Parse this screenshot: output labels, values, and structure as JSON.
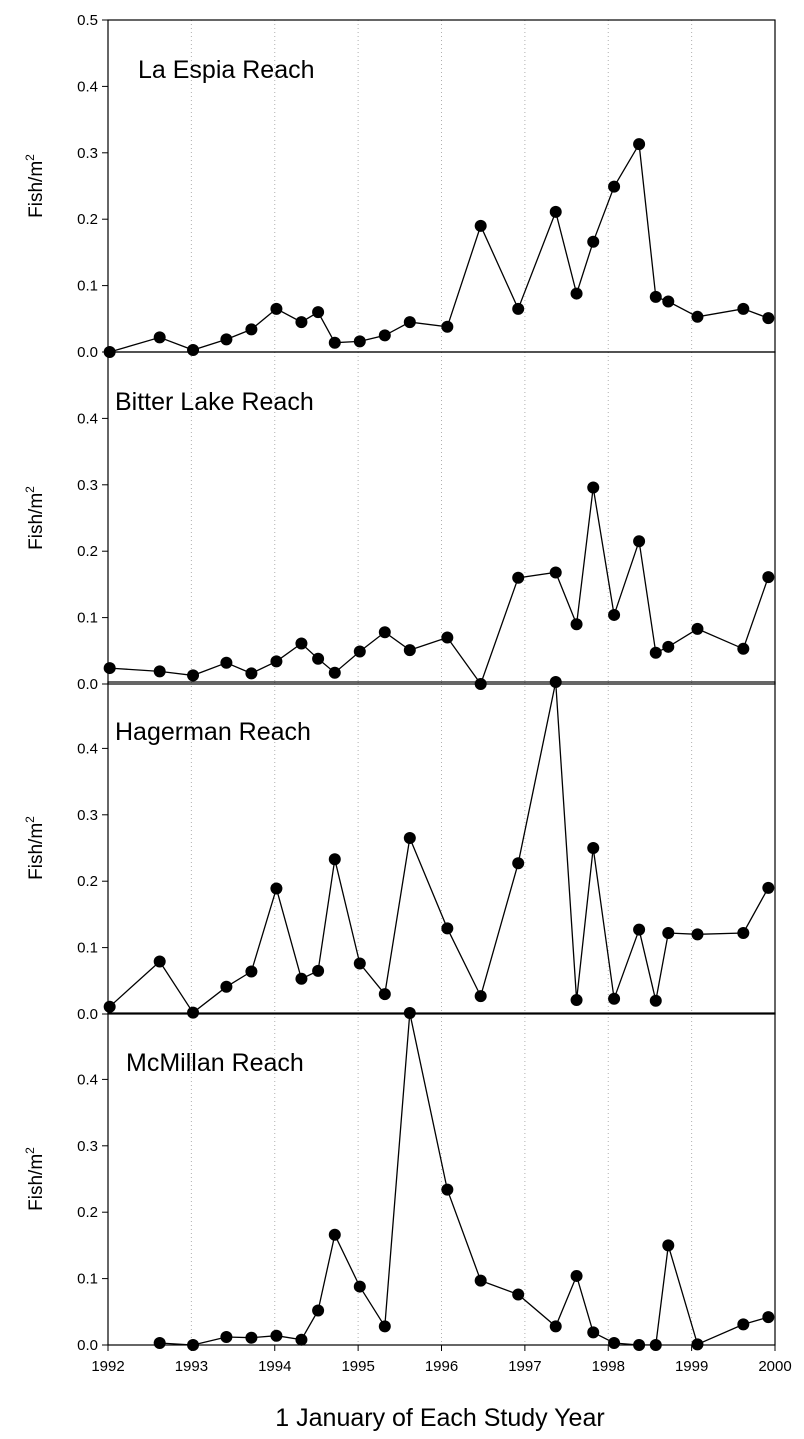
{
  "chart_data": {
    "type": "line",
    "xlabel": "1 January of Each Study Year",
    "x_ticks": [
      "1992",
      "1993",
      "1994",
      "1995",
      "1996",
      "1997",
      "1998",
      "1999",
      "2000"
    ],
    "xlim": [
      1992,
      2000
    ],
    "ylim": [
      0,
      0.5
    ],
    "y_ticks_top_panel": [
      "0.0",
      "0.1",
      "0.2",
      "0.3",
      "0.4",
      "0.5"
    ],
    "y_ticks_other_panels": [
      "0.0",
      "0.1",
      "0.2",
      "0.3",
      "0.4"
    ],
    "vertical_grid": "dotted at each year",
    "panels": [
      {
        "title": "La Espia Reach",
        "ylabel": "Fish/m²",
        "x": [
          1992.02,
          1992.62,
          1993.02,
          1993.42,
          1993.72,
          1994.02,
          1994.32,
          1994.52,
          1994.72,
          1995.02,
          1995.32,
          1995.62,
          1996.07,
          1996.47,
          1996.92,
          1997.37,
          1997.62,
          1997.82,
          1998.07,
          1998.37,
          1998.57,
          1998.72,
          1999.07,
          1999.62,
          1999.92
        ],
        "y": [
          0.0,
          0.022,
          0.003,
          0.019,
          0.034,
          0.065,
          0.045,
          0.06,
          0.014,
          0.016,
          0.025,
          0.045,
          0.038,
          0.19,
          0.065,
          0.211,
          0.088,
          0.166,
          0.249,
          0.313,
          0.083,
          0.076,
          0.053,
          0.065,
          0.051
        ]
      },
      {
        "title": "Bitter Lake Reach",
        "ylabel": "Fish/m²",
        "x": [
          1992.02,
          1992.62,
          1993.02,
          1993.42,
          1993.72,
          1994.02,
          1994.32,
          1994.52,
          1994.72,
          1995.02,
          1995.32,
          1995.62,
          1996.07,
          1996.47,
          1996.92,
          1997.37,
          1997.62,
          1997.82,
          1998.07,
          1998.37,
          1998.57,
          1998.72,
          1999.07,
          1999.62,
          1999.92
        ],
        "y": [
          0.024,
          0.019,
          0.013,
          0.032,
          0.016,
          0.034,
          0.061,
          0.038,
          0.017,
          0.049,
          0.078,
          0.051,
          0.07,
          0.0,
          0.16,
          0.168,
          0.09,
          0.296,
          0.104,
          0.215,
          0.047,
          0.056,
          0.083,
          0.053,
          0.161
        ]
      },
      {
        "title": "Hagerman Reach",
        "ylabel": "Fish/m²",
        "x": [
          1992.02,
          1992.62,
          1993.02,
          1993.42,
          1993.72,
          1994.02,
          1994.32,
          1994.52,
          1994.72,
          1995.02,
          1995.32,
          1995.62,
          1996.07,
          1996.47,
          1996.92,
          1997.37,
          1997.62,
          1997.82,
          1998.07,
          1998.37,
          1998.57,
          1998.72,
          1999.07,
          1999.62,
          1999.92
        ],
        "y": [
          0.011,
          0.079,
          0.002,
          0.041,
          0.064,
          0.189,
          0.053,
          0.065,
          0.233,
          0.076,
          0.03,
          0.265,
          0.129,
          0.027,
          0.227,
          0.5,
          0.021,
          0.25,
          0.023,
          0.127,
          0.02,
          0.122,
          0.12,
          0.122,
          0.19
        ]
      },
      {
        "title": "McMillan Reach",
        "ylabel": "Fish/m²",
        "x": [
          1992.62,
          1993.02,
          1993.42,
          1993.72,
          1994.02,
          1994.32,
          1994.52,
          1994.72,
          1995.02,
          1995.32,
          1995.62,
          1996.07,
          1996.47,
          1996.92,
          1997.37,
          1997.62,
          1997.82,
          1998.07,
          1998.37,
          1998.57,
          1998.72,
          1999.07,
          1999.62,
          1999.92
        ],
        "y": [
          0.003,
          0.0,
          0.012,
          0.011,
          0.014,
          0.008,
          0.052,
          0.166,
          0.088,
          0.028,
          0.5,
          0.234,
          0.097,
          0.076,
          0.028,
          0.104,
          0.019,
          0.003,
          0.0,
          0.0,
          0.15,
          0.001,
          0.031,
          0.042
        ]
      }
    ]
  }
}
